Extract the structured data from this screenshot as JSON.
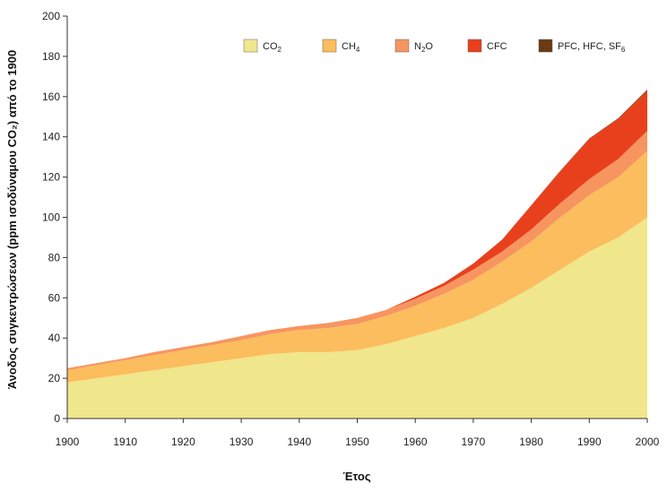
{
  "chart_data": {
    "type": "area",
    "stacked": true,
    "xlabel": "Έτος",
    "ylabel": "Άνοδος συγκεντρώσεων (ppm ισοδύναμου CO₂) από το 1900",
    "xlim": [
      1900,
      2000
    ],
    "ylim": [
      0,
      200
    ],
    "x_ticks": [
      "1900",
      "1910",
      "1920",
      "1930",
      "1940",
      "1950",
      "1960",
      "1970",
      "1980",
      "1990",
      "2000"
    ],
    "y_ticks": [
      "0",
      "20",
      "40",
      "60",
      "80",
      "100",
      "120",
      "140",
      "160",
      "180",
      "200"
    ],
    "grid": false,
    "legend_position": "top-right",
    "x": [
      1900,
      1905,
      1910,
      1915,
      1920,
      1925,
      1930,
      1935,
      1940,
      1945,
      1950,
      1955,
      1960,
      1965,
      1970,
      1975,
      1980,
      1985,
      1990,
      1995,
      2000
    ],
    "series": [
      {
        "name": "CO₂",
        "color": "#f0e68c",
        "values": [
          18,
          20,
          22,
          24,
          26,
          28,
          30,
          32,
          33,
          33,
          34,
          37,
          41,
          45,
          50,
          57,
          65,
          74,
          83,
          90,
          100
        ]
      },
      {
        "name": "CH₄",
        "color": "#fbbd5d",
        "values": [
          6,
          6.5,
          7,
          7.5,
          8,
          8.5,
          9,
          10,
          11,
          12,
          13,
          14,
          15,
          17,
          19,
          21,
          23,
          26,
          28,
          30,
          33
        ]
      },
      {
        "name": "N₂O",
        "color": "#f79560",
        "values": [
          1,
          1,
          1,
          1.5,
          1.5,
          1.5,
          2,
          2,
          2,
          2.5,
          3,
          3,
          3.5,
          4,
          5,
          5,
          6,
          7,
          8,
          9,
          10
        ]
      },
      {
        "name": "CFC",
        "color": "#e8401c",
        "values": [
          0,
          0,
          0,
          0,
          0,
          0,
          0,
          0,
          0,
          0,
          0,
          0,
          1,
          1.5,
          3,
          6,
          12,
          16,
          20,
          20,
          20
        ]
      },
      {
        "name": "PFC, HFC, SF₆",
        "color": "#6b3a12",
        "values": [
          0,
          0,
          0,
          0,
          0,
          0,
          0,
          0,
          0,
          0,
          0,
          0,
          0,
          0,
          0,
          0,
          0,
          0.1,
          0.2,
          0.3,
          0.5
        ]
      }
    ]
  },
  "legend": [
    {
      "base": "CO",
      "sub": "2",
      "suffix": ""
    },
    {
      "base": "CH",
      "sub": "4",
      "suffix": ""
    },
    {
      "base": "N",
      "sub": "2",
      "suffix": "O"
    },
    {
      "base": "CFC",
      "sub": "",
      "suffix": ""
    },
    {
      "base": "PFC, HFC, SF",
      "sub": "6",
      "suffix": ""
    }
  ]
}
